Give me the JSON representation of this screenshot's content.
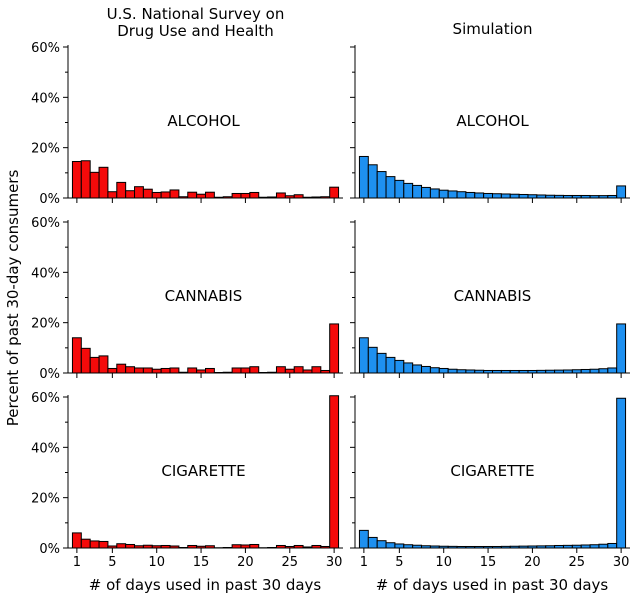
{
  "figure": {
    "ylabel": "Percent of past 30-day consumers",
    "xlabel": "# of days used in past 30 days"
  },
  "chart_data": [
    {
      "type": "bar",
      "column_title": "U.S. National Survey on\nDrug Use and Health",
      "panel_label": "ALCOHOL",
      "color": "#f50a0a",
      "x": [
        1,
        2,
        3,
        4,
        5,
        6,
        7,
        8,
        9,
        10,
        11,
        12,
        13,
        14,
        15,
        16,
        17,
        18,
        19,
        20,
        21,
        22,
        23,
        24,
        25,
        26,
        27,
        28,
        29,
        30
      ],
      "values": [
        14.5,
        14.8,
        10.2,
        12.2,
        2.5,
        6.2,
        2.9,
        4.5,
        3.5,
        2.2,
        2.4,
        3.2,
        0.5,
        2.3,
        1.5,
        2.3,
        0.3,
        0.5,
        1.8,
        1.8,
        2.2,
        0.3,
        0.4,
        2.0,
        0.9,
        1.3,
        0.3,
        0.4,
        0.5,
        4.3
      ],
      "xlim": [
        0,
        31
      ],
      "ylim": [
        0,
        60
      ],
      "yticks": [
        "0%",
        "20%",
        "40%",
        "60%"
      ],
      "xticks": [
        "1",
        "5",
        "10",
        "15",
        "20",
        "25",
        "30"
      ]
    },
    {
      "type": "bar",
      "column_title": "Simulation",
      "panel_label": "ALCOHOL",
      "color": "#1e90f0",
      "x": [
        1,
        2,
        3,
        4,
        5,
        6,
        7,
        8,
        9,
        10,
        11,
        12,
        13,
        14,
        15,
        16,
        17,
        18,
        19,
        20,
        21,
        22,
        23,
        24,
        25,
        26,
        27,
        28,
        29,
        30
      ],
      "values": [
        16.5,
        13.2,
        10.5,
        8.5,
        7.0,
        5.8,
        5.0,
        4.2,
        3.6,
        3.1,
        2.8,
        2.5,
        2.2,
        2.0,
        1.8,
        1.7,
        1.6,
        1.5,
        1.4,
        1.3,
        1.2,
        1.1,
        1.05,
        1.0,
        1.0,
        1.0,
        0.95,
        0.95,
        1.0,
        4.8
      ],
      "xlim": [
        0,
        31
      ],
      "ylim": [
        0,
        60
      ],
      "yticks": [
        "0%",
        "20%",
        "40%",
        "60%"
      ],
      "xticks": [
        "1",
        "5",
        "10",
        "15",
        "20",
        "25",
        "30"
      ]
    },
    {
      "type": "bar",
      "panel_label": "CANNABIS",
      "color": "#f50a0a",
      "x": [
        1,
        2,
        3,
        4,
        5,
        6,
        7,
        8,
        9,
        10,
        11,
        12,
        13,
        14,
        15,
        16,
        17,
        18,
        19,
        20,
        21,
        22,
        23,
        24,
        25,
        26,
        27,
        28,
        29,
        30
      ],
      "values": [
        14.0,
        9.8,
        6.2,
        6.8,
        1.8,
        3.5,
        2.5,
        2.0,
        2.0,
        1.5,
        1.8,
        2.0,
        0.3,
        2.0,
        1.2,
        1.8,
        0.2,
        0.3,
        2.0,
        2.0,
        2.5,
        0.2,
        0.3,
        2.5,
        1.5,
        2.5,
        1.2,
        2.5,
        1.0,
        19.5
      ],
      "xlim": [
        0,
        31
      ],
      "ylim": [
        0,
        60
      ],
      "yticks": [
        "0%",
        "20%",
        "40%",
        "60%"
      ],
      "xticks": [
        "1",
        "5",
        "10",
        "15",
        "20",
        "25",
        "30"
      ]
    },
    {
      "type": "bar",
      "panel_label": "CANNABIS",
      "color": "#1e90f0",
      "x": [
        1,
        2,
        3,
        4,
        5,
        6,
        7,
        8,
        9,
        10,
        11,
        12,
        13,
        14,
        15,
        16,
        17,
        18,
        19,
        20,
        21,
        22,
        23,
        24,
        25,
        26,
        27,
        28,
        29,
        30
      ],
      "values": [
        14.0,
        10.2,
        7.8,
        6.2,
        5.0,
        4.0,
        3.2,
        2.6,
        2.1,
        1.8,
        1.5,
        1.3,
        1.2,
        1.1,
        1.0,
        1.0,
        1.0,
        1.0,
        1.0,
        1.0,
        1.05,
        1.1,
        1.15,
        1.2,
        1.3,
        1.4,
        1.5,
        1.7,
        2.0,
        19.5
      ],
      "xlim": [
        0,
        31
      ],
      "ylim": [
        0,
        60
      ],
      "yticks": [
        "0%",
        "20%",
        "40%",
        "60%"
      ],
      "xticks": [
        "1",
        "5",
        "10",
        "15",
        "20",
        "25",
        "30"
      ]
    },
    {
      "type": "bar",
      "panel_label": "CIGARETTE",
      "color": "#f50a0a",
      "x": [
        1,
        2,
        3,
        4,
        5,
        6,
        7,
        8,
        9,
        10,
        11,
        12,
        13,
        14,
        15,
        16,
        17,
        18,
        19,
        20,
        21,
        22,
        23,
        24,
        25,
        26,
        27,
        28,
        29,
        30
      ],
      "values": [
        6.0,
        3.5,
        2.8,
        2.6,
        0.8,
        1.7,
        1.4,
        0.9,
        1.1,
        0.9,
        1.0,
        0.8,
        0.2,
        1.0,
        0.7,
        0.9,
        0.1,
        0.2,
        1.3,
        1.2,
        1.4,
        0.1,
        0.2,
        1.0,
        0.6,
        1.0,
        0.4,
        1.0,
        0.6,
        60.5
      ],
      "xlim": [
        0,
        31
      ],
      "ylim": [
        0,
        60
      ],
      "yticks": [
        "0%",
        "20%",
        "40%",
        "60%"
      ],
      "xticks": [
        "1",
        "5",
        "10",
        "15",
        "20",
        "25",
        "30"
      ]
    },
    {
      "type": "bar",
      "panel_label": "CIGARETTE",
      "color": "#1e90f0",
      "x": [
        1,
        2,
        3,
        4,
        5,
        6,
        7,
        8,
        9,
        10,
        11,
        12,
        13,
        14,
        15,
        16,
        17,
        18,
        19,
        20,
        21,
        22,
        23,
        24,
        25,
        26,
        27,
        28,
        29,
        30
      ],
      "values": [
        7.0,
        4.2,
        2.9,
        2.1,
        1.6,
        1.3,
        1.1,
        0.9,
        0.8,
        0.7,
        0.65,
        0.6,
        0.6,
        0.6,
        0.6,
        0.6,
        0.65,
        0.7,
        0.75,
        0.8,
        0.85,
        0.9,
        1.0,
        1.05,
        1.1,
        1.2,
        1.3,
        1.5,
        1.8,
        59.5
      ],
      "xlim": [
        0,
        31
      ],
      "ylim": [
        0,
        60
      ],
      "yticks": [
        "0%",
        "20%",
        "40%",
        "60%"
      ],
      "xticks": [
        "1",
        "5",
        "10",
        "15",
        "20",
        "25",
        "30"
      ]
    }
  ]
}
